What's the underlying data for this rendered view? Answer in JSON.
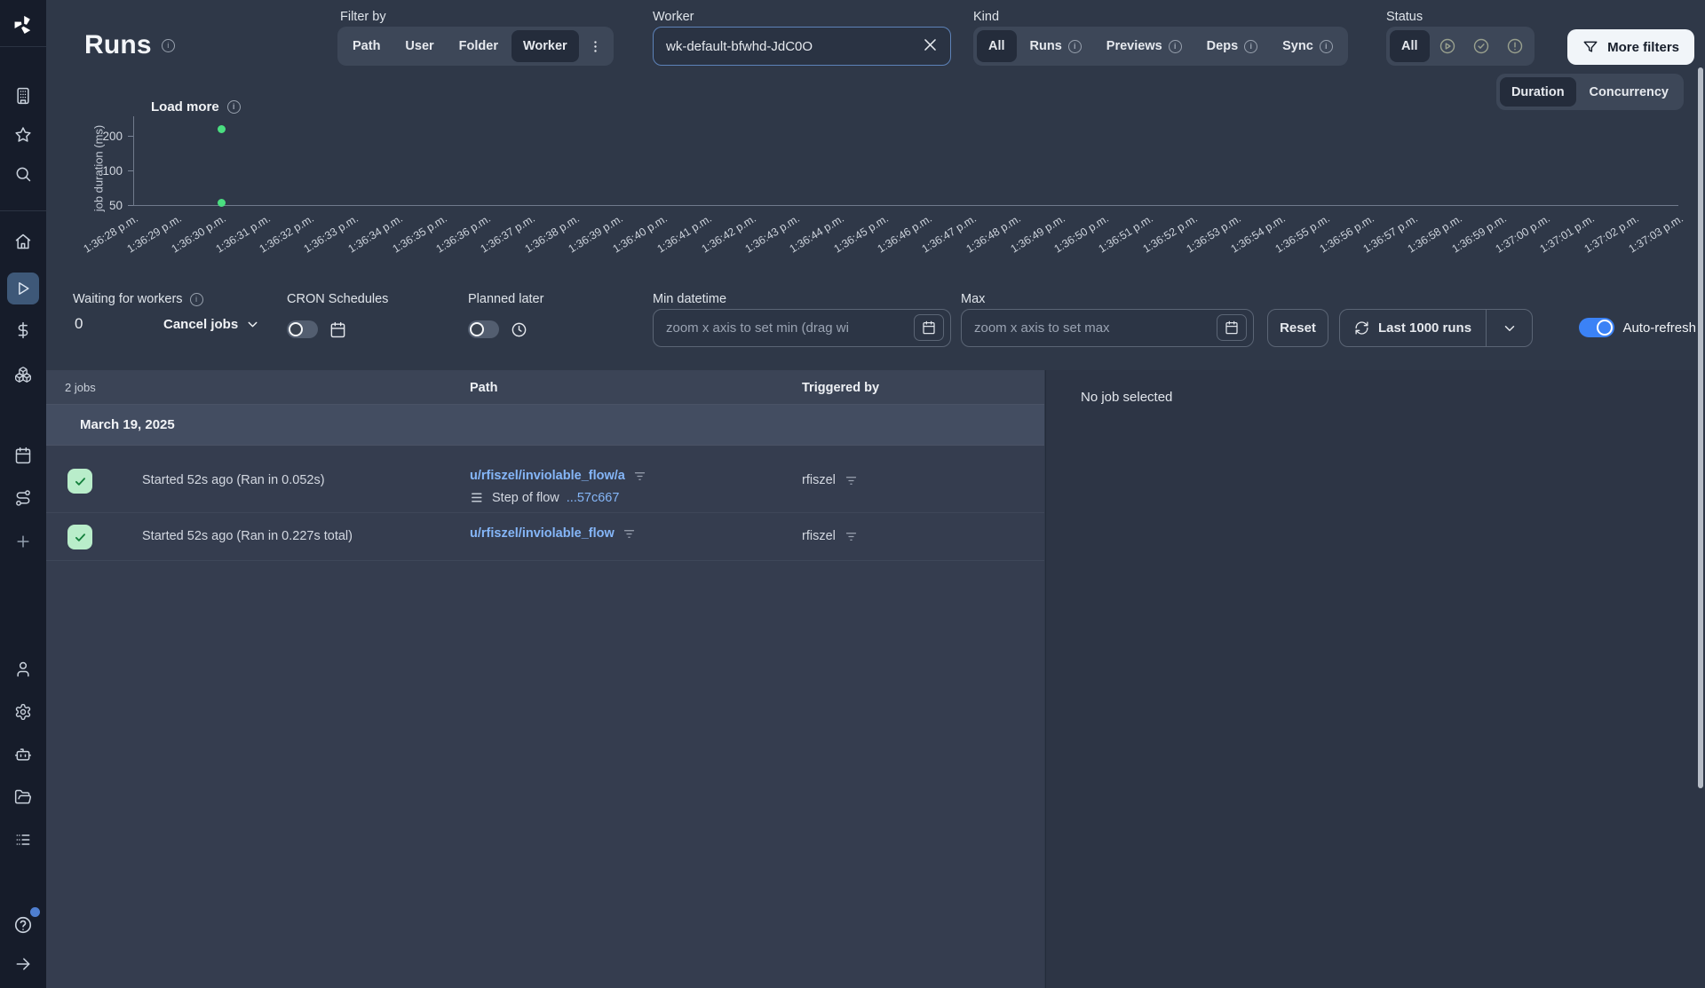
{
  "app": {
    "name": "Windmill",
    "logo_icon": "windmill-logo"
  },
  "sidebar": {
    "icons": [
      "building",
      "star",
      "search",
      "home",
      "play",
      "dollar-sign",
      "boxes",
      "calendar",
      "route",
      "plus",
      "user",
      "settings",
      "bot",
      "folder-open",
      "list",
      "help-circle",
      "arrow-right"
    ],
    "active": "play"
  },
  "header": {
    "title": "Runs",
    "filter_by": {
      "label": "Filter by",
      "options": [
        "Path",
        "User",
        "Folder",
        "Worker"
      ],
      "selected": "Worker",
      "more_icon": "kebab-menu"
    },
    "worker_field": {
      "label": "Worker",
      "value": "wk-default-bfwhd-JdC0O",
      "clear_icon": "x-icon"
    },
    "kind": {
      "label": "Kind",
      "options": [
        "All",
        "Runs",
        "Previews",
        "Deps",
        "Sync"
      ],
      "selected": "All",
      "info_on": [
        "Runs",
        "Previews",
        "Deps",
        "Sync"
      ]
    },
    "status": {
      "label": "Status",
      "selected": "All",
      "icons": [
        "play-circle",
        "check-circle",
        "alert-circle"
      ]
    },
    "more_filters": {
      "label": "More filters",
      "icon": "funnel"
    },
    "view_toggle": {
      "options": [
        "Duration",
        "Concurrency"
      ],
      "selected": "Duration"
    }
  },
  "chart_data": {
    "type": "scatter",
    "load_more_label": "Load more",
    "ylabel": "job duration (ms)",
    "y_scale": "log2",
    "y_ticks": [
      200,
      100,
      50
    ],
    "x_ticks": [
      "1:36:28 p.m.",
      "1:36:29 p.m.",
      "1:36:30 p.m.",
      "1:36:31 p.m.",
      "1:36:32 p.m.",
      "1:36:33 p.m.",
      "1:36:34 p.m.",
      "1:36:35 p.m.",
      "1:36:36 p.m.",
      "1:36:37 p.m.",
      "1:36:38 p.m.",
      "1:36:39 p.m.",
      "1:36:40 p.m.",
      "1:36:41 p.m.",
      "1:36:42 p.m.",
      "1:36:43 p.m.",
      "1:36:44 p.m.",
      "1:36:45 p.m.",
      "1:36:46 p.m.",
      "1:36:47 p.m.",
      "1:36:48 p.m.",
      "1:36:49 p.m.",
      "1:36:50 p.m.",
      "1:36:51 p.m.",
      "1:36:52 p.m.",
      "1:36:53 p.m.",
      "1:36:54 p.m.",
      "1:36:55 p.m.",
      "1:36:56 p.m.",
      "1:36:57 p.m.",
      "1:36:58 p.m.",
      "1:36:59 p.m.",
      "1:37:00 p.m.",
      "1:37:01 p.m.",
      "1:37:02 p.m.",
      "1:37:03 p.m."
    ],
    "points": [
      {
        "x": "1:36:30 p.m.",
        "y_ms": 227,
        "color": "#4ade80"
      },
      {
        "x": "1:36:30 p.m.",
        "y_ms": 52,
        "color": "#4ade80"
      }
    ],
    "grid": false,
    "legend": false
  },
  "controls": {
    "waiting": {
      "label": "Waiting for workers",
      "value": "0"
    },
    "cancel_jobs": "Cancel jobs",
    "cron": {
      "label": "CRON Schedules",
      "toggle_on": false,
      "icon": "calendar"
    },
    "planned": {
      "label": "Planned later",
      "toggle_on": false,
      "icon": "clock"
    },
    "min_datetime": {
      "label": "Min datetime",
      "placeholder": "zoom x axis to set min (drag wi",
      "icon": "calendar"
    },
    "max_datetime": {
      "label": "Max",
      "placeholder": "zoom x axis to set max",
      "icon": "calendar"
    },
    "reset": "Reset",
    "last_runs": {
      "label": "Last 1000 runs",
      "icon": "refresh",
      "chevron": "chevron-down"
    },
    "auto_refresh": {
      "label": "Auto-refresh",
      "toggle_on": true
    }
  },
  "jobs": {
    "count_label": "2 jobs",
    "columns": {
      "path": "Path",
      "triggered_by": "Triggered by"
    },
    "date_header": "March 19, 2025",
    "rows": [
      {
        "status": "success",
        "started": "Started 52s ago (Ran in 0.052s)",
        "path": "u/rfiszel/inviolable_flow/a",
        "step_prefix": "Step of flow ",
        "step_link": "...57c667",
        "triggered_by": "rfiszel"
      },
      {
        "status": "success",
        "started": "Started 52s ago (Ran in 0.227s total)",
        "path": "u/rfiszel/inviolable_flow",
        "triggered_by": "rfiszel"
      }
    ]
  },
  "detail_panel": {
    "empty_text": "No job selected"
  },
  "colors": {
    "accent_blue": "#3b82f6",
    "link_blue": "#85b6f8",
    "success_green": "#4ade80",
    "badge_green_bg": "#b9edca",
    "more_filters_bg": "#f1f5f9",
    "sidebar_bg": "#161c2a",
    "page_bg": "#2f3848"
  }
}
